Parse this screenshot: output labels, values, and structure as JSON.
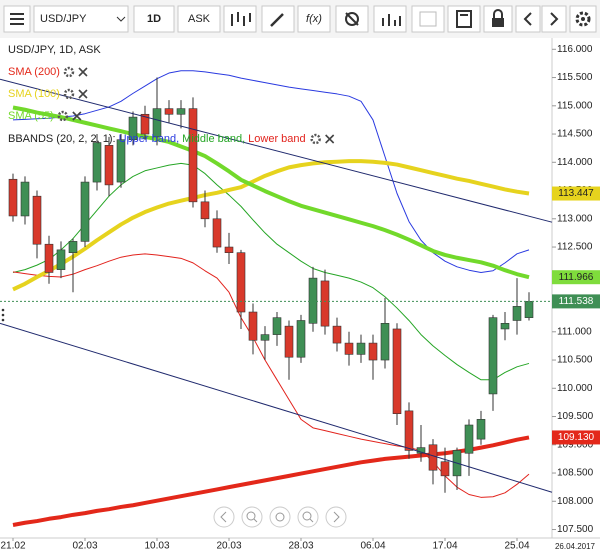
{
  "toolbar": {
    "symbol": "USD/JPY",
    "interval": "1D",
    "price_type": "ASK",
    "function_icon": "f(x)"
  },
  "chart_data": {
    "type": "candlestick",
    "title": "USD/JPY, 1D, ASK",
    "categories": [
      "21.02",
      null,
      null,
      null,
      null,
      null,
      "02.03",
      null,
      null,
      null,
      null,
      null,
      "10.03",
      null,
      null,
      null,
      null,
      null,
      "20.03",
      null,
      null,
      null,
      null,
      null,
      "28.03",
      null,
      null,
      null,
      null,
      null,
      "06.04",
      null,
      null,
      null,
      null,
      null,
      "17.04",
      null,
      null,
      null,
      null,
      null,
      "25.04",
      null
    ],
    "x_end_label": "26.04.2017",
    "candles": {
      "up_color": "#3f8f55",
      "down_color": "#d8392b",
      "open": [
        113.7,
        113.05,
        113.4,
        112.55,
        112.1,
        112.4,
        112.6,
        113.65,
        114.3,
        113.65,
        114.4,
        114.85,
        114.45,
        114.95,
        114.85,
        114.95,
        113.3,
        113.0,
        112.5,
        112.4,
        111.35,
        110.85,
        110.95,
        111.1,
        110.55,
        111.15,
        111.9,
        111.1,
        110.8,
        110.6,
        110.8,
        110.5,
        111.05,
        109.6,
        108.85,
        109.0,
        108.7,
        108.45,
        108.85,
        109.1,
        109.9,
        111.05,
        111.2,
        111.25
      ],
      "high": [
        113.8,
        113.75,
        113.5,
        112.7,
        112.6,
        112.65,
        113.75,
        114.5,
        114.45,
        114.5,
        114.9,
        115.0,
        115.5,
        115.1,
        115.1,
        115.15,
        113.5,
        113.15,
        112.75,
        112.45,
        111.5,
        111.1,
        111.35,
        111.2,
        111.3,
        112.15,
        112.1,
        111.25,
        111.0,
        110.95,
        110.95,
        111.6,
        111.15,
        109.75,
        109.35,
        109.1,
        108.95,
        108.95,
        109.45,
        109.6,
        111.3,
        111.35,
        111.95,
        111.7
      ],
      "low": [
        112.95,
        112.9,
        112.3,
        111.85,
        111.95,
        111.7,
        112.5,
        113.5,
        113.4,
        113.55,
        114.3,
        114.4,
        114.3,
        114.7,
        114.6,
        113.2,
        112.85,
        112.4,
        112.2,
        111.05,
        110.6,
        110.5,
        110.75,
        110.15,
        110.45,
        111.0,
        110.95,
        110.65,
        110.4,
        110.45,
        110.15,
        110.35,
        109.35,
        108.75,
        108.7,
        108.3,
        108.15,
        108.2,
        108.45,
        109.0,
        109.6,
        110.85,
        110.95,
        111.2
      ],
      "close": [
        113.05,
        113.65,
        112.55,
        112.05,
        112.45,
        112.6,
        113.65,
        114.35,
        113.6,
        114.4,
        114.8,
        114.5,
        114.95,
        114.85,
        114.95,
        113.3,
        113.0,
        112.5,
        112.4,
        111.35,
        110.85,
        110.95,
        111.25,
        110.55,
        111.2,
        111.95,
        111.1,
        110.8,
        110.6,
        110.8,
        110.5,
        111.15,
        109.55,
        108.9,
        108.95,
        108.55,
        108.45,
        108.9,
        109.35,
        109.45,
        111.25,
        111.15,
        111.45,
        111.538
      ]
    },
    "series": [
      {
        "name": "SMA (200)",
        "color": "#e3281a",
        "values": [
          107.58,
          107.62,
          107.65,
          107.69,
          107.72,
          107.76,
          107.79,
          107.83,
          107.86,
          107.9,
          107.93,
          107.97,
          108.01,
          108.05,
          108.09,
          108.13,
          108.17,
          108.21,
          108.25,
          108.29,
          108.33,
          108.37,
          108.41,
          108.45,
          108.49,
          108.53,
          108.57,
          108.61,
          108.65,
          108.69,
          108.72,
          108.75,
          108.77,
          108.79,
          108.81,
          108.83,
          108.85,
          108.88,
          108.91,
          108.95,
          108.99,
          109.04,
          109.09,
          109.13
        ]
      },
      {
        "name": "SMA (100)",
        "color": "#e6d31e",
        "values": [
          111.75,
          111.85,
          111.97,
          112.08,
          112.2,
          112.33,
          112.47,
          112.62,
          112.76,
          112.9,
          113.02,
          113.12,
          113.2,
          113.27,
          113.32,
          113.37,
          113.42,
          113.46,
          113.51,
          113.56,
          113.66,
          113.76,
          113.84,
          113.91,
          113.95,
          113.98,
          114.0,
          114.01,
          114.02,
          114.02,
          114.01,
          113.99,
          113.96,
          113.91,
          113.86,
          113.81,
          113.76,
          113.71,
          113.67,
          113.62,
          113.57,
          113.52,
          113.48,
          113.447
        ]
      },
      {
        "name": "SMA (55)",
        "color": "#72d92b",
        "values": [
          114.97,
          114.93,
          114.88,
          114.84,
          114.8,
          114.75,
          114.7,
          114.65,
          114.6,
          114.55,
          114.5,
          114.45,
          114.41,
          114.36,
          114.28,
          114.2,
          114.11,
          113.98,
          113.84,
          113.69,
          113.59,
          113.49,
          113.4,
          113.31,
          113.23,
          113.17,
          113.11,
          113.05,
          112.99,
          112.93,
          112.87,
          112.8,
          112.72,
          112.63,
          112.53,
          112.43,
          112.36,
          112.31,
          112.27,
          112.23,
          112.17,
          112.09,
          112.02,
          111.966
        ]
      }
    ],
    "bbands": {
      "label": "BBANDS (20, 2, 2, 1):",
      "series": [
        {
          "name": "Upper band,",
          "color": "#2a3ae0",
          "values": [
            114.75,
            114.76,
            114.77,
            114.78,
            114.8,
            114.82,
            114.86,
            114.92,
            114.98,
            115.08,
            115.22,
            115.35,
            115.48,
            115.58,
            115.62,
            115.62,
            115.6,
            115.57,
            115.54,
            115.49,
            115.45,
            115.41,
            115.37,
            115.33,
            115.3,
            115.27,
            115.24,
            115.21,
            115.17,
            115.08,
            114.75,
            114.1,
            113.45,
            112.95,
            112.62,
            112.4,
            112.25,
            112.15,
            112.09,
            112.05,
            112.08,
            112.22,
            112.38,
            112.45
          ]
        },
        {
          "name": "Middle band,",
          "color": "#25a525",
          "values": [
            112.05,
            112.1,
            112.18,
            112.28,
            112.45,
            112.65,
            112.9,
            113.15,
            113.4,
            113.6,
            113.75,
            113.85,
            113.9,
            113.95,
            113.98,
            113.95,
            113.8,
            113.6,
            113.42,
            113.22,
            112.98,
            112.75,
            112.55,
            112.4,
            112.25,
            112.12,
            112.05,
            112.0,
            111.95,
            111.88,
            111.78,
            111.62,
            111.42,
            111.2,
            110.95,
            110.75,
            110.58,
            110.42,
            110.28,
            110.15,
            110.15,
            110.28,
            110.38,
            110.44
          ]
        },
        {
          "name": "Lower band",
          "color": "#e2231d",
          "values": [
            112.06,
            112.03,
            112.0,
            111.98,
            111.97,
            112.02,
            112.1,
            112.17,
            112.25,
            112.32,
            112.36,
            112.38,
            112.36,
            112.33,
            112.3,
            112.22,
            112.08,
            111.95,
            111.7,
            111.25,
            110.9,
            110.5,
            110.15,
            109.8,
            109.45,
            109.3,
            109.25,
            109.2,
            109.15,
            109.1,
            109.06,
            109.02,
            108.98,
            108.95,
            108.9,
            108.7,
            108.45,
            108.25,
            108.12,
            108.07,
            108.08,
            108.15,
            108.3,
            108.48
          ]
        }
      ]
    },
    "trend_lines": [
      {
        "color": "#202a6e",
        "values": [
          115.47,
          112.94
        ]
      },
      {
        "color": "#202a6e",
        "values": [
          111.15,
          108.16
        ]
      }
    ],
    "current_price": {
      "value": 111.538,
      "label": "111.538",
      "color": "#3f8f55"
    },
    "price_labels": [
      {
        "value": 113.447,
        "label": "113.447",
        "color": "#e6d31e"
      },
      {
        "value": 111.966,
        "label": "111.966",
        "color": "#7fdc3c"
      },
      {
        "value": 109.13,
        "label": "109.130",
        "color": "#e3281a"
      }
    ],
    "ylim": [
      107.35,
      116.2
    ],
    "yticks": [
      {
        "value": 107.5,
        "label": "107.500"
      },
      {
        "value": 108,
        "label": "108.000"
      },
      {
        "value": 108.5,
        "label": "108.500"
      },
      {
        "value": 109,
        "label": "109.000"
      },
      {
        "value": 109.5,
        "label": "109.500"
      },
      {
        "value": 110,
        "label": "110.000"
      },
      {
        "value": 110.5,
        "label": "110.500"
      },
      {
        "value": 111,
        "label": "111.000"
      },
      {
        "value": 111.5,
        "label": "111.500"
      },
      {
        "value": 112,
        "label": "112.000"
      },
      {
        "value": 112.5,
        "label": "112.500"
      },
      {
        "value": 113,
        "label": "113.000"
      },
      {
        "value": 113.5,
        "label": "113.500"
      },
      {
        "value": 114,
        "label": "114.000"
      },
      {
        "value": 114.5,
        "label": "114.500"
      },
      {
        "value": 115,
        "label": "115.000"
      },
      {
        "value": 115.5,
        "label": "115.500"
      },
      {
        "value": 116,
        "label": "116.000"
      }
    ]
  }
}
